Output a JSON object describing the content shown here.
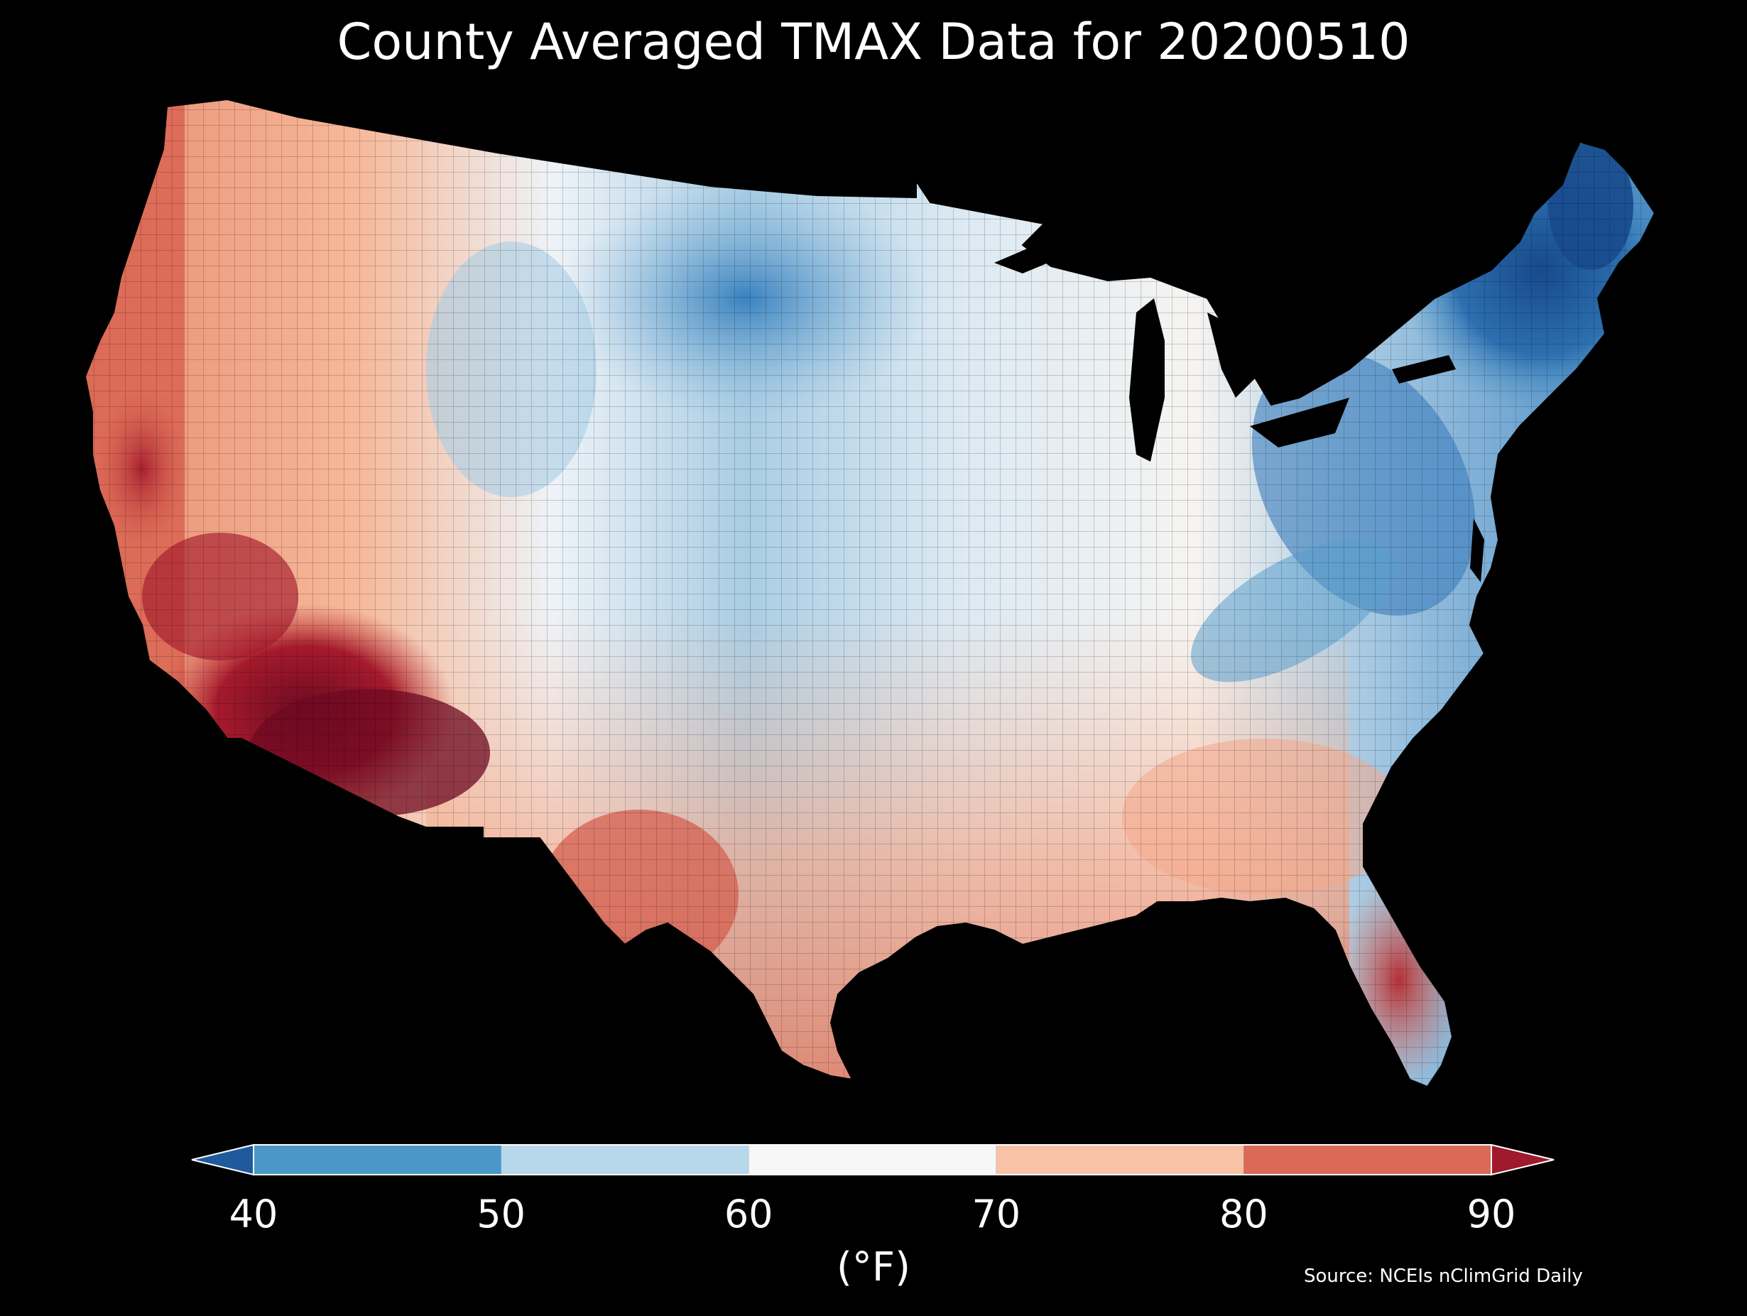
{
  "title": "County Averaged TMAX Data for 20200510",
  "colorbar": {
    "unit_label": "(°F)",
    "ticks": [
      "40",
      "50",
      "60",
      "70",
      "80",
      "90"
    ],
    "bins": [
      {
        "range": "<40",
        "color": "#1f5a9c"
      },
      {
        "range": "40-50",
        "color": "#4b98c8"
      },
      {
        "range": "50-60",
        "color": "#b7d7ea"
      },
      {
        "range": "60-70",
        "color": "#f7f7f7"
      },
      {
        "range": "70-80",
        "color": "#f8c2a6"
      },
      {
        "range": "80-90",
        "color": "#da6a57"
      },
      {
        "range": ">90",
        "color": "#9e1a2c"
      }
    ]
  },
  "source": "Source: NCEIs nClimGrid Daily",
  "background": "#000000"
}
